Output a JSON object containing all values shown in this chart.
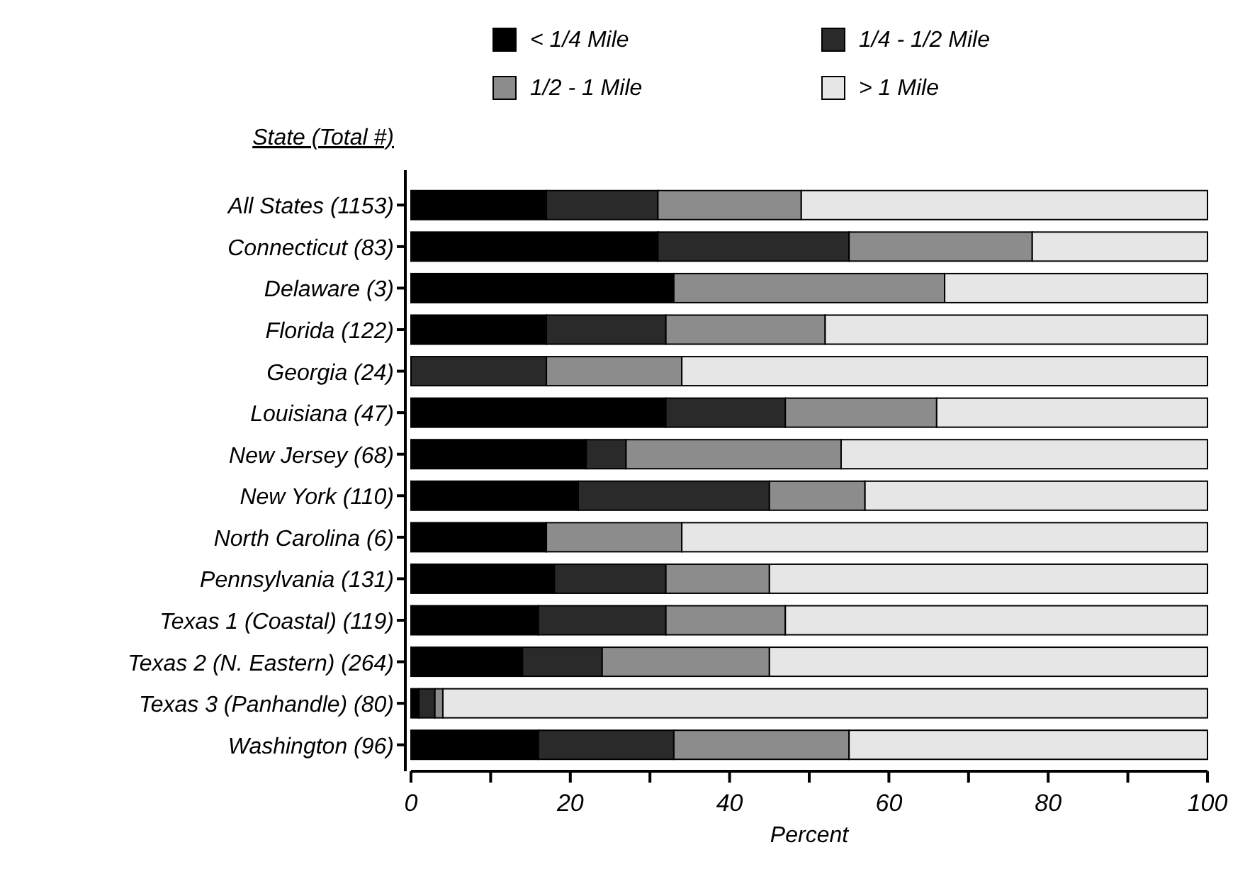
{
  "chart_data": {
    "type": "bar",
    "orientation": "horizontal",
    "stacked": true,
    "ylabel": "State (Total #)",
    "xlabel": "Percent",
    "categories": [
      "All States (1153)",
      "Connecticut (83)",
      "Delaware (3)",
      "Florida (122)",
      "Georgia (24)",
      "Louisiana (47)",
      "New Jersey (68)",
      "New York (110)",
      "North Carolina (6)",
      "Pennsylvania (131)",
      "Texas 1 (Coastal)  (119)",
      "Texas 2 (N. Eastern)  (264)",
      "Texas 3 (Panhandle) (80)",
      "Washington (96)"
    ],
    "series": [
      {
        "name": "< 1/4 Mile",
        "color": "#000000",
        "values": [
          17,
          31,
          33,
          17,
          0,
          32,
          22,
          21,
          17,
          18,
          16,
          14,
          1,
          16
        ]
      },
      {
        "name": "1/4 - 1/2 Mile",
        "color": "#2a2a2a",
        "values": [
          14,
          24,
          0,
          15,
          17,
          15,
          5,
          24,
          0,
          14,
          16,
          10,
          2,
          17
        ]
      },
      {
        "name": "1/2 - 1 Mile",
        "color": "#8c8c8c",
        "values": [
          18,
          23,
          34,
          20,
          17,
          19,
          27,
          12,
          17,
          13,
          15,
          21,
          1,
          22
        ]
      },
      {
        "name": "> 1 Mile",
        "color": "#e6e6e6",
        "values": [
          51,
          22,
          33,
          48,
          66,
          34,
          46,
          43,
          66,
          55,
          53,
          55,
          96,
          45
        ]
      }
    ],
    "xlim": [
      0,
      100
    ],
    "xticks": [
      0,
      {
        "value": 10,
        "label": null
      },
      20,
      {
        "value": 30,
        "label": null
      },
      40,
      {
        "value": 50,
        "label": null
      },
      60,
      {
        "value": 70,
        "label": null
      },
      80,
      {
        "value": 90,
        "label": null
      },
      100
    ],
    "legend": "top",
    "grid": false
  }
}
